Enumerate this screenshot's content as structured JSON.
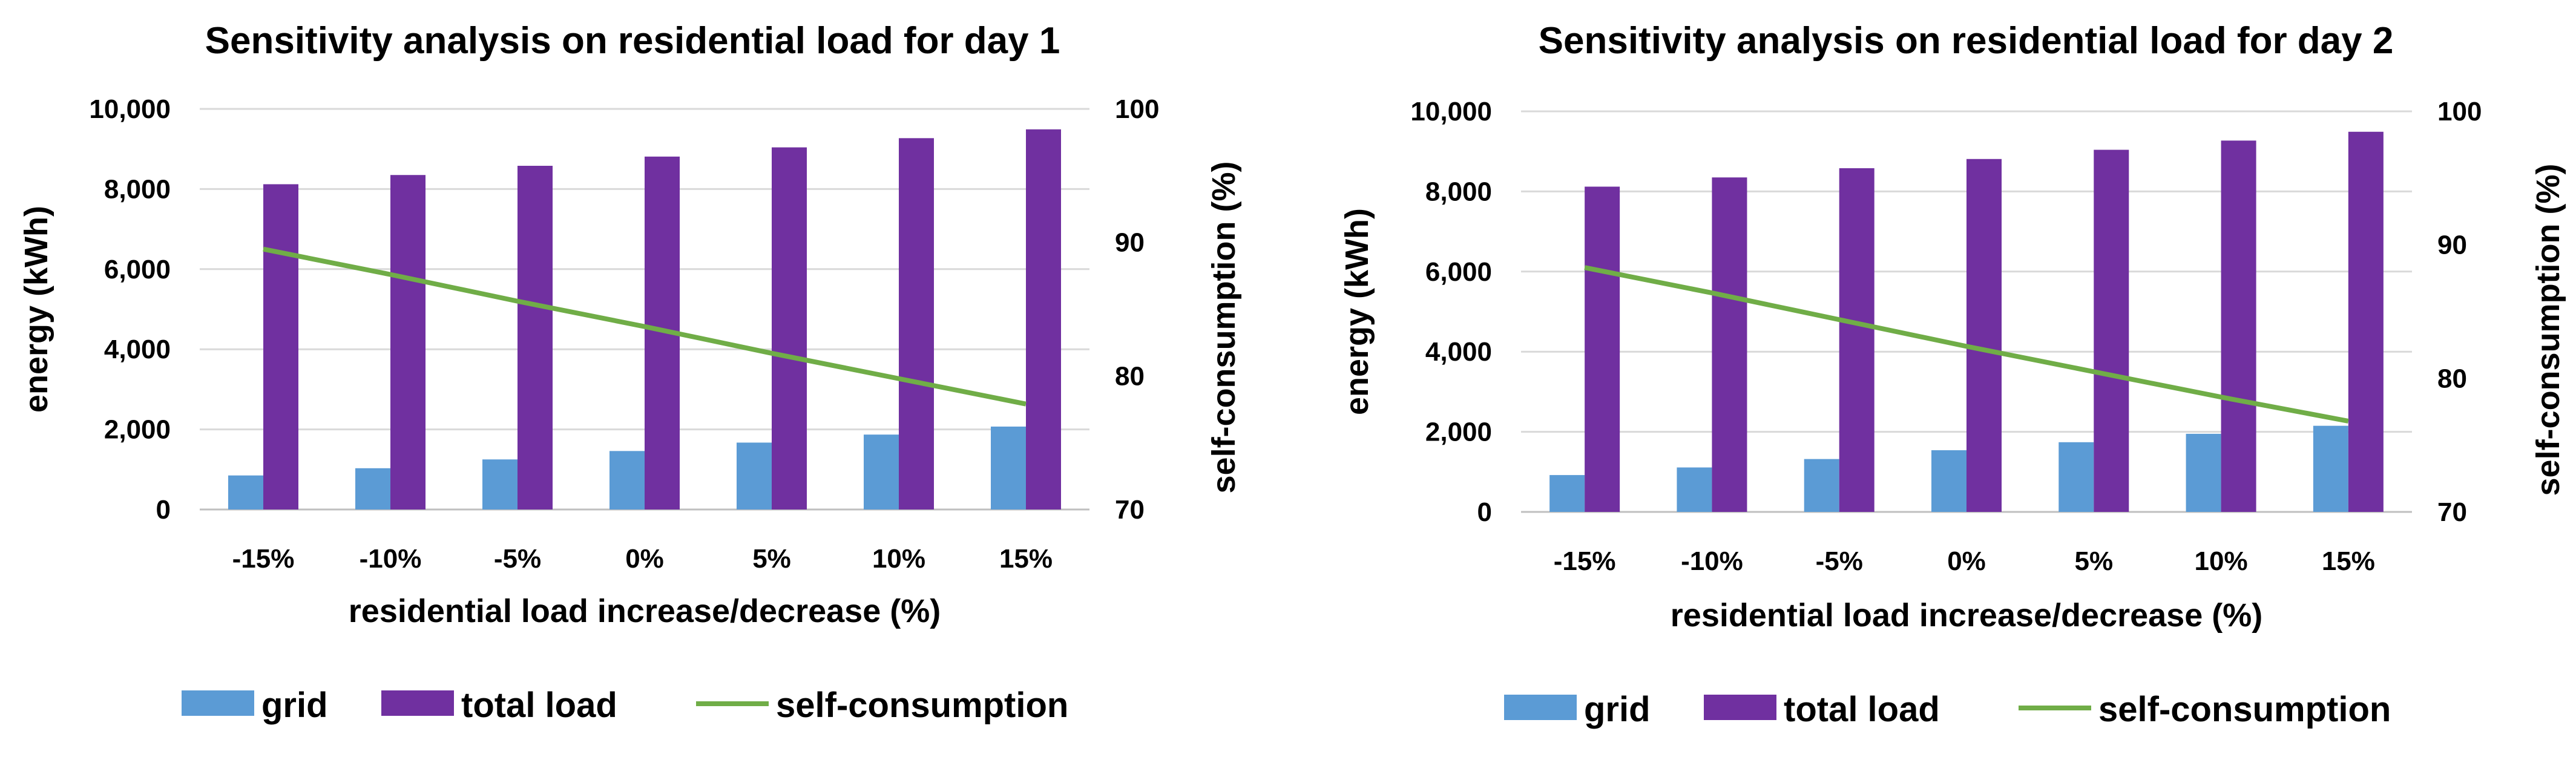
{
  "colors": {
    "grid_bar": "#5b9bd5",
    "total_load_bar": "#7030a0",
    "self_consumption_line": "#70ad47",
    "gridline": "#d9d9d9"
  },
  "legend": {
    "grid": "grid",
    "total_load": "total load",
    "self_consumption": "self-consumption"
  },
  "chart_data": [
    {
      "type": "bar",
      "title": "Sensitivity analysis on residential load for day 1",
      "xlabel": "residential load increase/decrease (%)",
      "ylabel": "energy (kWh)",
      "y2label": "self-consumption (%)",
      "categories": [
        "-15%",
        "-10%",
        "-5%",
        "0%",
        "5%",
        "10%",
        "15%"
      ],
      "ylim": [
        0,
        10000
      ],
      "yticks": [
        0,
        2000,
        4000,
        6000,
        8000,
        10000
      ],
      "ytick_labels": [
        "0",
        "2,000",
        "4,000",
        "6,000",
        "8,000",
        "10,000"
      ],
      "y2lim": [
        70,
        100
      ],
      "y2ticks": [
        70,
        80,
        90,
        100
      ],
      "y2tick_labels": [
        "70",
        "80",
        "90",
        "100"
      ],
      "series": [
        {
          "name": "grid",
          "kind": "bar",
          "axis": "left",
          "values": [
            850,
            1030,
            1250,
            1460,
            1670,
            1870,
            2070
          ]
        },
        {
          "name": "total load",
          "kind": "bar",
          "axis": "left",
          "values": [
            8120,
            8350,
            8580,
            8810,
            9040,
            9270,
            9490
          ]
        },
        {
          "name": "self-consumption",
          "kind": "line",
          "axis": "right",
          "values": [
            89.5,
            87.6,
            85.6,
            83.7,
            81.7,
            79.8,
            77.9
          ]
        }
      ]
    },
    {
      "type": "bar",
      "title": "Sensitivity analysis on residential load for day 2",
      "xlabel": "residential load increase/decrease (%)",
      "ylabel": "energy (kWh)",
      "y2label": "self-consumption (%)",
      "categories": [
        "-15%",
        "-10%",
        "-5%",
        "0%",
        "5%",
        "10%",
        "15%"
      ],
      "ylim": [
        0,
        10000
      ],
      "yticks": [
        0,
        2000,
        4000,
        6000,
        8000,
        10000
      ],
      "ytick_labels": [
        "0",
        "2,000",
        "4,000",
        "6,000",
        "8,000",
        "10,000"
      ],
      "y2lim": [
        70,
        100
      ],
      "y2ticks": [
        70,
        80,
        90,
        100
      ],
      "y2tick_labels": [
        "70",
        "80",
        "90",
        "100"
      ],
      "series": [
        {
          "name": "grid",
          "kind": "bar",
          "axis": "left",
          "values": [
            920,
            1110,
            1320,
            1540,
            1740,
            1950,
            2150
          ]
        },
        {
          "name": "total load",
          "kind": "bar",
          "axis": "left",
          "values": [
            8120,
            8350,
            8580,
            8810,
            9040,
            9270,
            9490
          ]
        },
        {
          "name": "self-consumption",
          "kind": "line",
          "axis": "right",
          "values": [
            88.3,
            86.4,
            84.4,
            82.4,
            80.5,
            78.6,
            76.8
          ]
        }
      ]
    }
  ]
}
